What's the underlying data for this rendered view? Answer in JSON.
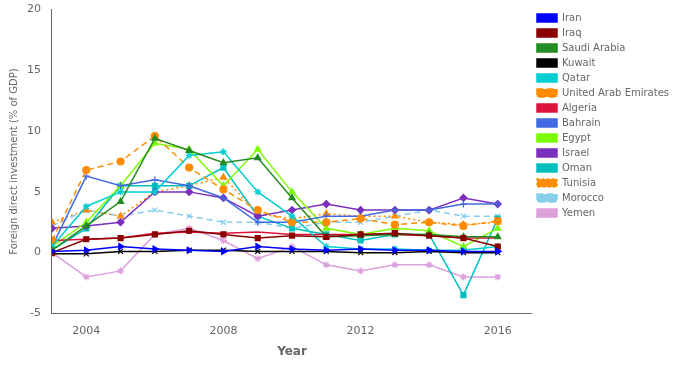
{
  "chart_data": {
    "type": "line",
    "x": [
      2003,
      2004,
      2005,
      2006,
      2007,
      2008,
      2009,
      2010,
      2011,
      2012,
      2013,
      2014,
      2015,
      2016
    ],
    "series": [
      {
        "name": "Iran",
        "color": "#0000FF",
        "line_style": "solid",
        "marker": "triangle-right",
        "values": [
          0.1,
          0.2,
          0.5,
          0.3,
          0.2,
          0.1,
          0.5,
          0.3,
          0.2,
          0.3,
          0.2,
          0.2,
          0.1,
          0.1
        ]
      },
      {
        "name": "Iraq",
        "color": "#8B0000",
        "line_style": "solid",
        "marker": "square",
        "values": [
          0.0,
          1.1,
          1.2,
          1.5,
          1.8,
          1.5,
          1.2,
          1.4,
          1.3,
          1.5,
          1.6,
          1.4,
          1.2,
          0.5
        ]
      },
      {
        "name": "Saudi Arabia",
        "color": "#228B22",
        "line_style": "solid",
        "marker": "triangle",
        "values": [
          0.2,
          2.2,
          4.2,
          9.4,
          8.4,
          7.4,
          7.8,
          4.5,
          1.3,
          1.4,
          1.5,
          1.5,
          1.3,
          1.3
        ]
      },
      {
        "name": "Kuwait",
        "color": "#000000",
        "line_style": "solid",
        "marker": "x",
        "values": [
          -0.1,
          -0.1,
          0.1,
          0.1,
          0.2,
          0.2,
          0.1,
          0.1,
          0.1,
          0.0,
          0.0,
          0.1,
          0.0,
          0.0
        ]
      },
      {
        "name": "Qatar",
        "color": "#00CED1",
        "line_style": "solid",
        "marker": "star",
        "values": [
          0.5,
          3.8,
          5.0,
          5.0,
          8.0,
          8.3,
          5.0,
          3.0,
          0.5,
          0.3,
          0.3,
          0.2,
          0.2,
          0.5
        ]
      },
      {
        "name": "United Arab Emirates",
        "color": "#FF8C00",
        "line_style": "dashed",
        "marker": "circle",
        "values": [
          1.0,
          6.8,
          7.5,
          9.6,
          7.0,
          5.2,
          3.5,
          2.5,
          2.5,
          2.8,
          2.3,
          2.5,
          2.2,
          2.6
        ]
      },
      {
        "name": "Algeria",
        "color": "#DC143C",
        "line_style": "solid",
        "marker": "none",
        "values": [
          1.0,
          1.1,
          1.2,
          1.6,
          1.7,
          1.6,
          1.7,
          1.5,
          1.5,
          1.5,
          1.5,
          1.4,
          1.2,
          1.2
        ]
      },
      {
        "name": "Bahrain",
        "color": "#4169E1",
        "line_style": "solid",
        "marker": "plus",
        "values": [
          0.5,
          6.3,
          5.5,
          6.0,
          5.5,
          4.5,
          2.5,
          2.5,
          3.0,
          3.0,
          3.5,
          3.5,
          4.0,
          4.0
        ]
      },
      {
        "name": "Egypt",
        "color": "#7CFC00",
        "line_style": "solid",
        "marker": "triangle",
        "values": [
          0.5,
          2.5,
          5.5,
          9.0,
          8.5,
          5.5,
          8.5,
          5.0,
          2.0,
          1.5,
          2.0,
          1.8,
          0.5,
          2.0
        ]
      },
      {
        "name": "Israel",
        "color": "#7B2FBE",
        "line_style": "solid",
        "marker": "diamond",
        "values": [
          2.0,
          2.2,
          2.5,
          5.0,
          5.0,
          4.5,
          3.0,
          3.5,
          4.0,
          3.5,
          3.5,
          3.5,
          4.5,
          4.0
        ]
      },
      {
        "name": "Oman",
        "color": "#00BFBF",
        "line_style": "solid",
        "marker": "square",
        "values": [
          0.2,
          2.0,
          5.5,
          5.5,
          5.5,
          7.0,
          3.0,
          2.0,
          1.5,
          1.0,
          1.5,
          1.5,
          -3.5,
          2.8
        ]
      },
      {
        "name": "Tunisia",
        "color": "#FF8C00",
        "line_style": "dotted",
        "marker": "triangle",
        "values": [
          2.5,
          3.5,
          3.0,
          5.0,
          5.5,
          6.2,
          3.2,
          2.8,
          3.2,
          3.0,
          3.0,
          2.5,
          2.3,
          2.5
        ]
      },
      {
        "name": "Morocco",
        "color": "#87CEEB",
        "line_style": "dashed",
        "marker": "x",
        "values": [
          2.2,
          3.5,
          3.0,
          3.5,
          3.0,
          2.5,
          2.5,
          2.0,
          2.5,
          2.5,
          3.0,
          3.5,
          3.0,
          3.0
        ]
      },
      {
        "name": "Yemen",
        "color": "#DDA0DD",
        "line_style": "solid",
        "marker": "star",
        "values": [
          0.0,
          -2.0,
          -1.5,
          1.5,
          2.0,
          1.0,
          -0.5,
          0.5,
          -1.0,
          -1.5,
          -1.0,
          -1.0,
          -2.0,
          -2.0
        ]
      }
    ],
    "xlim": [
      2003,
      2017
    ],
    "xticks": [
      2004,
      2008,
      2012,
      2016
    ],
    "ylim": [
      -5,
      20
    ],
    "yticks": [
      -5,
      0,
      5,
      10,
      15,
      20
    ],
    "xlabel": "Year",
    "ylabel": "Foreign direct investment (% of GDP)",
    "grid": false,
    "legend": "right"
  }
}
